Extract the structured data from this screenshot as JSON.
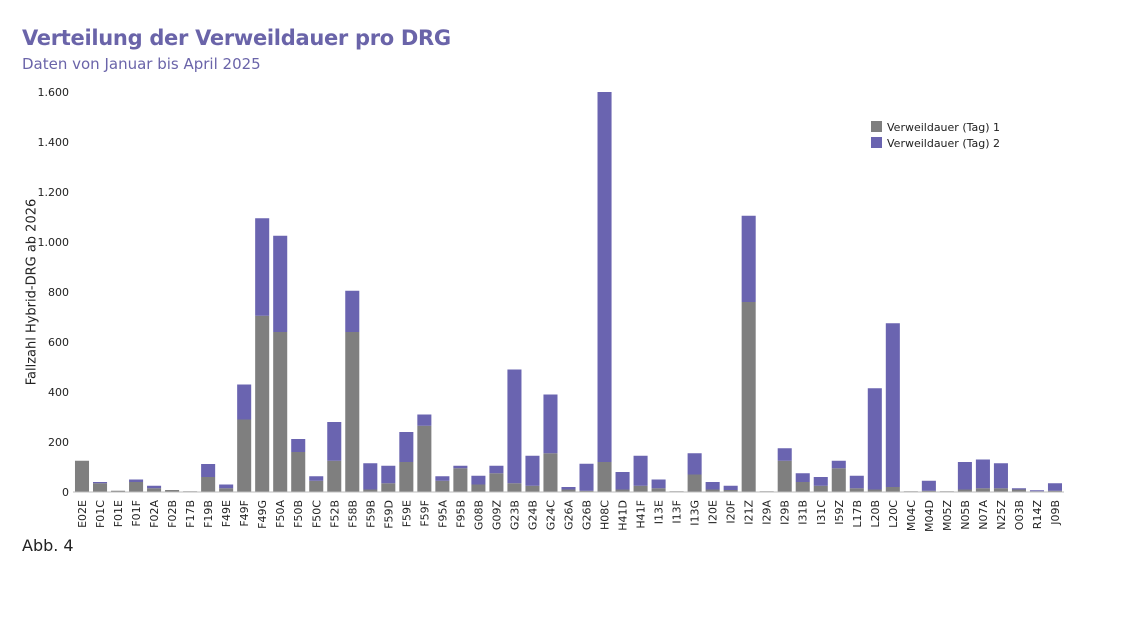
{
  "chart_data": {
    "type": "bar",
    "stacked": true,
    "title": "Verteilung der Verweildauer pro DRG",
    "subtitle": "Daten von Januar bis April 2025",
    "xlabel": "",
    "ylabel": "Fallzahl Hybrid-DRG ab 2026",
    "ylim": [
      0,
      1600
    ],
    "yticks": [
      0,
      200,
      400,
      600,
      800,
      1000,
      1200,
      1400,
      1600
    ],
    "ytick_labels": [
      "0",
      "200",
      "400",
      "600",
      "800",
      "1.000",
      "1.200",
      "1.400",
      "1.600"
    ],
    "legend_position": "top-right",
    "categories": [
      "E02E",
      "F01C",
      "F01E",
      "F01F",
      "F02A",
      "F02B",
      "F17B",
      "F19B",
      "F49E",
      "F49F",
      "F49G",
      "F50A",
      "F50B",
      "F50C",
      "F52B",
      "F58B",
      "F59B",
      "F59D",
      "F59E",
      "F59F",
      "F95A",
      "F95B",
      "G08B",
      "G09Z",
      "G23B",
      "G24B",
      "G24C",
      "G26A",
      "G26B",
      "H08C",
      "H41D",
      "H41F",
      "I13E",
      "I13F",
      "I13G",
      "I20E",
      "I20F",
      "I21Z",
      "I29A",
      "I29B",
      "I31B",
      "I31C",
      "I59Z",
      "L17B",
      "L20B",
      "L20C",
      "M04C",
      "M04D",
      "M05Z",
      "N05B",
      "N07A",
      "N25Z",
      "O03B",
      "R14Z",
      "J09B"
    ],
    "series": [
      {
        "name": "Verweildauer (Tag) 1",
        "color": "#7f7f7f",
        "values": [
          125,
          35,
          5,
          40,
          15,
          8,
          3,
          60,
          15,
          290,
          705,
          640,
          160,
          45,
          125,
          640,
          10,
          35,
          120,
          265,
          45,
          95,
          30,
          75,
          35,
          25,
          155,
          10,
          5,
          120,
          10,
          25,
          15,
          3,
          70,
          10,
          8,
          760,
          3,
          125,
          40,
          25,
          95,
          15,
          10,
          20,
          3,
          5,
          3,
          10,
          15,
          15,
          10,
          3,
          5
        ]
      },
      {
        "name": "Verweildauer (Tag) 2",
        "color": "#6a64b0",
        "values": [
          0,
          5,
          0,
          10,
          10,
          0,
          0,
          52,
          15,
          140,
          390,
          385,
          52,
          18,
          155,
          165,
          105,
          70,
          120,
          45,
          18,
          10,
          35,
          30,
          455,
          120,
          235,
          10,
          108,
          1480,
          70,
          120,
          35,
          0,
          85,
          30,
          17,
          345,
          0,
          50,
          35,
          35,
          30,
          50,
          405,
          655,
          0,
          40,
          0,
          110,
          115,
          100,
          5,
          4,
          30
        ]
      }
    ]
  },
  "caption": "Abb. 4"
}
